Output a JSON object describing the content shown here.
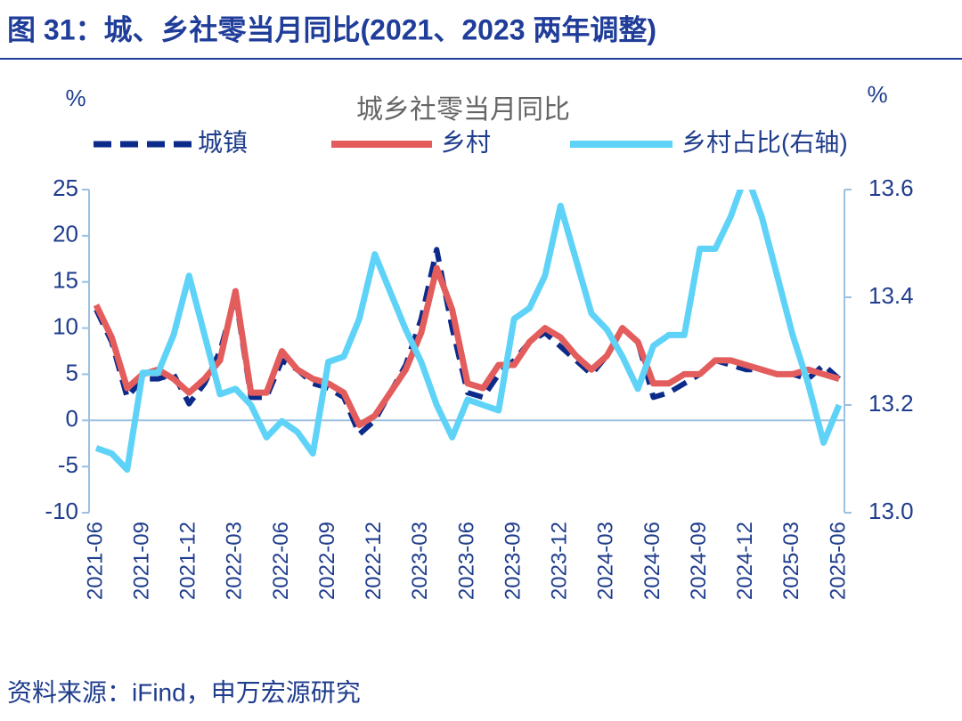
{
  "chart_data": {
    "type": "line",
    "figure_title": "图 31：城、乡社零当月同比(2021、2023 两年调整)",
    "title": "城乡社零当月同比",
    "y_unit": "%",
    "y2_unit": "%",
    "source": "资料来源：iFind，申万宏源研究",
    "categories": [
      "2021-06",
      null,
      null,
      "2021-09",
      null,
      null,
      "2021-12",
      null,
      null,
      "2022-03",
      null,
      null,
      "2022-06",
      null,
      null,
      "2022-09",
      null,
      null,
      "2022-12",
      null,
      null,
      "2023-03",
      null,
      null,
      "2023-06",
      null,
      null,
      "2023-09",
      null,
      null,
      "2023-12",
      null,
      null,
      "2024-03",
      null,
      null,
      "2024-06",
      null,
      null,
      "2024-09",
      null,
      null,
      "2024-12",
      null,
      null,
      "2025-03",
      null,
      null,
      "2025-06"
    ],
    "series": [
      {
        "name": "城镇",
        "color": "#0b2a8a",
        "dashed": true,
        "values": [
          12,
          8.5,
          2.5,
          4.5,
          4.5,
          5,
          1.8,
          4,
          7.5,
          13.5,
          2.5,
          2.5,
          6.5,
          5.5,
          4,
          3.5,
          2.5,
          -1.5,
          0,
          3,
          6,
          11,
          18.5,
          10,
          3,
          2.5,
          5,
          6.5,
          8.5,
          9.5,
          8,
          6.5,
          5,
          7,
          10,
          8.5,
          2.5,
          3,
          4,
          5,
          6.5,
          6,
          5.5,
          5.5,
          5,
          5,
          4.5,
          6,
          4.5
        ]
      },
      {
        "name": "乡村",
        "color": "#e35d5d",
        "dashed": false,
        "values": [
          12.5,
          9,
          3.5,
          5,
          5.5,
          4.5,
          3,
          4.5,
          6.5,
          14,
          3,
          3,
          7.5,
          5.5,
          4.5,
          4,
          3,
          -0.5,
          0.5,
          3,
          5.5,
          9.5,
          16.5,
          12,
          4,
          3.5,
          6,
          6,
          8.5,
          10,
          9,
          7,
          5.5,
          7,
          10,
          8.5,
          4,
          4,
          5,
          5,
          6.5,
          6.5,
          6,
          5.5,
          5,
          5,
          5.5,
          5,
          4.5
        ]
      },
      {
        "name": "乡村占比(右轴)",
        "color": "#5fd3f7",
        "dashed": false,
        "axis": "y2",
        "values": [
          13.12,
          13.11,
          13.08,
          13.26,
          13.26,
          13.33,
          13.44,
          13.33,
          13.22,
          13.23,
          13.2,
          13.14,
          13.17,
          13.15,
          13.11,
          13.28,
          13.29,
          13.36,
          13.48,
          13.41,
          13.34,
          13.28,
          13.2,
          13.14,
          13.21,
          13.2,
          13.19,
          13.36,
          13.38,
          13.44,
          13.57,
          13.47,
          13.37,
          13.34,
          13.29,
          13.23,
          13.31,
          13.33,
          13.33,
          13.49,
          13.49,
          13.55,
          13.63,
          13.55,
          13.44,
          13.33,
          13.24,
          13.13,
          13.2
        ]
      }
    ],
    "ylim": [
      -10,
      25
    ],
    "yticks": [
      -10,
      -5,
      0,
      5,
      10,
      15,
      20,
      25
    ],
    "y2lim": [
      13.0,
      13.6
    ],
    "y2ticks": [
      {
        "value": 13,
        "label": "13.0"
      },
      13.2,
      13.4,
      13.6
    ]
  }
}
